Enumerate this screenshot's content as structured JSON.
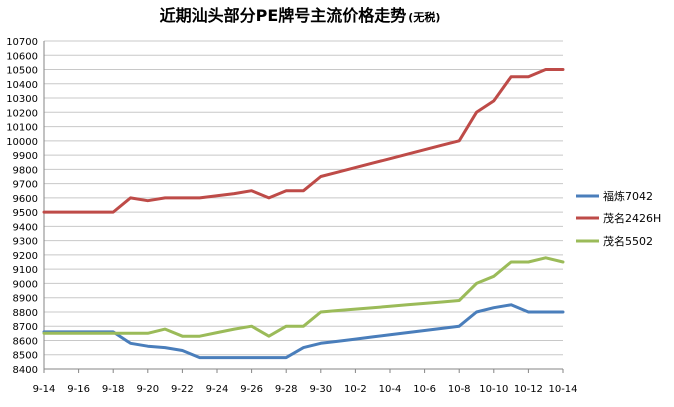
{
  "chart_data": {
    "type": "line",
    "title": "近期汕头部分PE牌号主流价格走势",
    "title_suffix": "(无税)",
    "xlabel": "",
    "ylabel": "",
    "ylim": [
      8400,
      10700
    ],
    "yticks": [
      8400,
      8500,
      8600,
      8700,
      8800,
      8900,
      9000,
      9100,
      9200,
      9300,
      9400,
      9500,
      9600,
      9700,
      9800,
      9900,
      10000,
      10100,
      10200,
      10300,
      10400,
      10500,
      10600,
      10700
    ],
    "grid": true,
    "legend_position": "right",
    "x": [
      "9-14",
      "9-15",
      "9-16",
      "9-17",
      "9-18",
      "9-19",
      "9-20",
      "9-21",
      "9-22",
      "9-23",
      "9-24",
      "9-25",
      "9-26",
      "9-27",
      "9-28",
      "9-29",
      "9-30",
      "10-1",
      "10-2",
      "10-3",
      "10-4",
      "10-5",
      "10-6",
      "10-7",
      "10-8",
      "10-9",
      "10-10",
      "10-11",
      "10-12",
      "10-13",
      "10-14"
    ],
    "x_tick_labels": [
      "9-14",
      "9-16",
      "9-18",
      "9-20",
      "9-22",
      "9-24",
      "9-26",
      "9-28",
      "9-30",
      "10-2",
      "10-4",
      "10-6",
      "10-8",
      "10-10",
      "10-12",
      "10-14"
    ],
    "series": [
      {
        "name": "福炼7042",
        "color": "#4A7EBB",
        "values": [
          8660,
          8660,
          8660,
          8660,
          8660,
          8580,
          8560,
          8550,
          8530,
          8480,
          8480,
          8480,
          8480,
          8480,
          8480,
          8550,
          8580,
          8595,
          8610,
          8625,
          8640,
          8655,
          8670,
          8685,
          8700,
          8800,
          8830,
          8850,
          8800,
          8800,
          8800
        ]
      },
      {
        "name": "茂名2426H",
        "color": "#BE4B48",
        "values": [
          9500,
          9500,
          9500,
          9500,
          9500,
          9600,
          9580,
          9600,
          9600,
          9600,
          9615,
          9630,
          9650,
          9600,
          9650,
          9650,
          9750,
          9781,
          9812,
          9844,
          9875,
          9906,
          9938,
          9969,
          10000,
          10200,
          10280,
          10450,
          10450,
          10500,
          10500
        ]
      },
      {
        "name": "茂名5502",
        "color": "#9BBB59",
        "values": [
          8650,
          8650,
          8650,
          8650,
          8650,
          8650,
          8650,
          8680,
          8630,
          8630,
          8655,
          8680,
          8700,
          8630,
          8700,
          8700,
          8800,
          8810,
          8820,
          8830,
          8840,
          8850,
          8860,
          8870,
          8880,
          9000,
          9050,
          9150,
          9150,
          9180,
          9150
        ]
      }
    ]
  }
}
